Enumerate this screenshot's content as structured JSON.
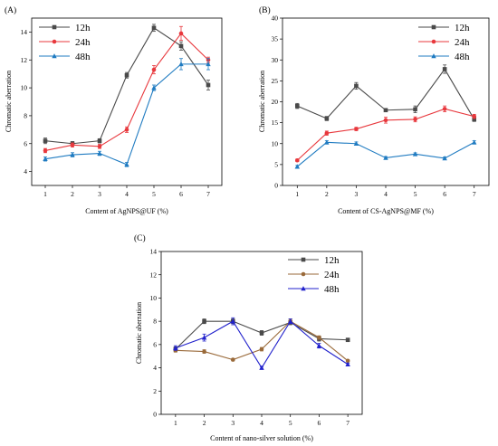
{
  "chart_data": [
    {
      "panel_label": "(A)",
      "type": "line",
      "xlabel": "Content of AgNPS@UF (%)",
      "ylabel": "Chromatic aberration",
      "x": [
        1,
        2,
        3,
        4,
        5,
        6,
        7
      ],
      "xlim": [
        0.5,
        7.5
      ],
      "ylim": [
        3,
        15
      ],
      "yticks": [
        4,
        6,
        8,
        10,
        12,
        14
      ],
      "legend_position": "top-left",
      "series": [
        {
          "name": "12h",
          "color": "#4a4a4a",
          "marker": "square",
          "values": [
            6.2,
            6.0,
            6.2,
            10.9,
            14.3,
            13.0,
            10.2
          ],
          "errors": [
            0.2,
            0.15,
            0.15,
            0.2,
            0.25,
            0.3,
            0.35
          ]
        },
        {
          "name": "24h",
          "color": "#e8383d",
          "marker": "circle",
          "values": [
            5.5,
            5.9,
            5.8,
            7.0,
            11.3,
            13.9,
            12.0
          ],
          "errors": [
            0.15,
            0.15,
            0.15,
            0.2,
            0.3,
            0.5,
            0.2
          ]
        },
        {
          "name": "48h",
          "color": "#1f7bc1",
          "marker": "triangle",
          "values": [
            4.9,
            5.2,
            5.3,
            4.5,
            10.0,
            11.7,
            11.7
          ],
          "errors": [
            0.15,
            0.15,
            0.15,
            0.15,
            0.2,
            0.4,
            0.4
          ]
        }
      ]
    },
    {
      "panel_label": "(B)",
      "type": "line",
      "xlabel": "Content of CS-AgNPS@MF (%)",
      "ylabel": "Chromatic aberration",
      "x": [
        1,
        2,
        3,
        4,
        5,
        6,
        7
      ],
      "xlim": [
        0.5,
        7.5
      ],
      "ylim": [
        0,
        40
      ],
      "yticks": [
        0,
        5,
        10,
        15,
        20,
        25,
        30,
        35,
        40
      ],
      "legend_position": "top-right",
      "series": [
        {
          "name": "12h",
          "color": "#4a4a4a",
          "marker": "square",
          "values": [
            19.0,
            16.0,
            23.8,
            18.0,
            18.2,
            27.8,
            15.8
          ],
          "errors": [
            0.6,
            0.5,
            0.8,
            0.4,
            0.8,
            1.0,
            0.5
          ]
        },
        {
          "name": "24h",
          "color": "#e8383d",
          "marker": "circle",
          "values": [
            6.0,
            12.5,
            13.5,
            15.6,
            15.8,
            18.3,
            16.5
          ],
          "errors": [
            0.3,
            0.5,
            0.4,
            0.7,
            0.6,
            0.7,
            0.5
          ]
        },
        {
          "name": "48h",
          "color": "#1f7bc1",
          "marker": "triangle",
          "values": [
            4.5,
            10.3,
            10.0,
            6.6,
            7.5,
            6.5,
            10.3
          ],
          "errors": [
            0.3,
            0.4,
            0.4,
            0.3,
            0.3,
            0.3,
            0.4
          ]
        }
      ]
    },
    {
      "panel_label": "(C)",
      "type": "line",
      "xlabel": "Content of nano-silver solution (%)",
      "ylabel": "Chromatic aberration",
      "x": [
        1,
        2,
        3,
        4,
        5,
        6,
        7
      ],
      "xlim": [
        0.5,
        7.5
      ],
      "ylim": [
        0,
        14
      ],
      "yticks": [
        0,
        2,
        4,
        6,
        8,
        10,
        12,
        14
      ],
      "legend_position": "top-right",
      "series": [
        {
          "name": "12h",
          "color": "#4a4a4a",
          "marker": "square",
          "values": [
            5.6,
            8.0,
            8.0,
            7.0,
            7.9,
            6.5,
            6.4
          ],
          "errors": [
            0.2,
            0.2,
            0.2,
            0.2,
            0.2,
            0.2,
            0.15
          ]
        },
        {
          "name": "24h",
          "color": "#9a6a3a",
          "marker": "circle",
          "values": [
            5.5,
            5.4,
            4.7,
            5.6,
            8.0,
            6.6,
            4.6
          ],
          "errors": [
            0.15,
            0.15,
            0.1,
            0.15,
            0.2,
            0.15,
            0.1
          ]
        },
        {
          "name": "48h",
          "color": "#2222cc",
          "marker": "triangle",
          "values": [
            5.7,
            6.6,
            8.0,
            4.0,
            8.0,
            5.9,
            4.3
          ],
          "errors": [
            0.2,
            0.3,
            0.3,
            0.1,
            0.2,
            0.2,
            0.1
          ]
        }
      ]
    }
  ]
}
